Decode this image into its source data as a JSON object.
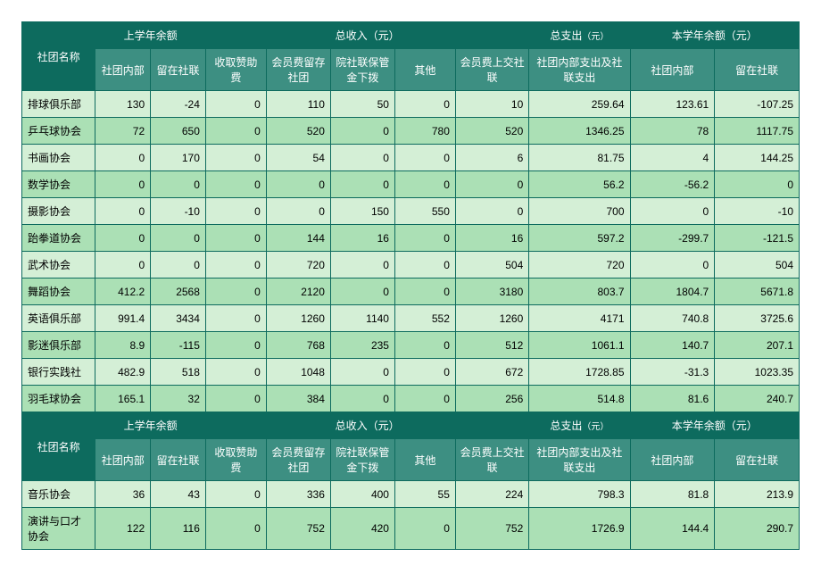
{
  "colors": {
    "header_bg": "#0d6b5e",
    "subheader_bg": "#3d8f82",
    "header_fg": "#ffffff",
    "row_light": "#d4efd6",
    "row_dark": "#abe0b5",
    "border": "#0d6b5e"
  },
  "header": {
    "name": "社团名称",
    "prev_balance": "上学年余额",
    "total_income": "总收入（元）",
    "total_expense": "总支出",
    "total_expense_unit": "（元）",
    "curr_balance": "本学年余额（元）",
    "sub": {
      "internal": "社团内部",
      "union": "留在社联",
      "sponsor": "收取赞助费",
      "fee_keep": "会员费留存社团",
      "union_deposit": "院社联保管金下拨",
      "other": "其他",
      "fee_up": "会员费上交社联",
      "expense_both": "社团内部支出及社联支出",
      "curr_internal": "社团内部",
      "curr_union": "留在社联"
    }
  },
  "rows1": [
    {
      "name": "排球俱乐部",
      "v": [
        "130",
        "-24",
        "0",
        "110",
        "50",
        "0",
        "10",
        "259.64",
        "123.61",
        "-107.25"
      ]
    },
    {
      "name": "乒乓球协会",
      "v": [
        "72",
        "650",
        "0",
        "520",
        "0",
        "780",
        "520",
        "1346.25",
        "78",
        "1117.75"
      ]
    },
    {
      "name": "书画协会",
      "v": [
        "0",
        "170",
        "0",
        "54",
        "0",
        "0",
        "6",
        "81.75",
        "4",
        "144.25"
      ]
    },
    {
      "name": "数学协会",
      "v": [
        "0",
        "0",
        "0",
        "0",
        "0",
        "0",
        "0",
        "56.2",
        "-56.2",
        "0"
      ]
    },
    {
      "name": "摄影协会",
      "v": [
        "0",
        "-10",
        "0",
        "0",
        "150",
        "550",
        "0",
        "700",
        "0",
        "-10"
      ]
    },
    {
      "name": "跆拳道协会",
      "v": [
        "0",
        "0",
        "0",
        "144",
        "16",
        "0",
        "16",
        "597.2",
        "-299.7",
        "-121.5"
      ]
    },
    {
      "name": "武术协会",
      "v": [
        "0",
        "0",
        "0",
        "720",
        "0",
        "0",
        "504",
        "720",
        "0",
        "504"
      ]
    },
    {
      "name": "舞蹈协会",
      "v": [
        "412.2",
        "2568",
        "0",
        "2120",
        "0",
        "0",
        "3180",
        "803.7",
        "1804.7",
        "5671.8"
      ]
    },
    {
      "name": "英语俱乐部",
      "v": [
        "991.4",
        "3434",
        "0",
        "1260",
        "1140",
        "552",
        "1260",
        "4171",
        "740.8",
        "3725.6"
      ]
    },
    {
      "name": "影迷俱乐部",
      "v": [
        "8.9",
        "-115",
        "0",
        "768",
        "235",
        "0",
        "512",
        "1061.1",
        "140.7",
        "207.1"
      ]
    },
    {
      "name": "银行实践社",
      "v": [
        "482.9",
        "518",
        "0",
        "1048",
        "0",
        "0",
        "672",
        "1728.85",
        "-31.3",
        "1023.35"
      ]
    },
    {
      "name": "羽毛球协会",
      "v": [
        "165.1",
        "32",
        "0",
        "384",
        "0",
        "0",
        "256",
        "514.8",
        "81.6",
        "240.7"
      ]
    }
  ],
  "rows2": [
    {
      "name": "音乐协会",
      "v": [
        "36",
        "43",
        "0",
        "336",
        "400",
        "55",
        "224",
        "798.3",
        "81.8",
        "213.9"
      ]
    },
    {
      "name": "演讲与口才协会",
      "v": [
        "122",
        "116",
        "0",
        "752",
        "420",
        "0",
        "752",
        "1726.9",
        "144.4",
        "290.7"
      ]
    }
  ]
}
